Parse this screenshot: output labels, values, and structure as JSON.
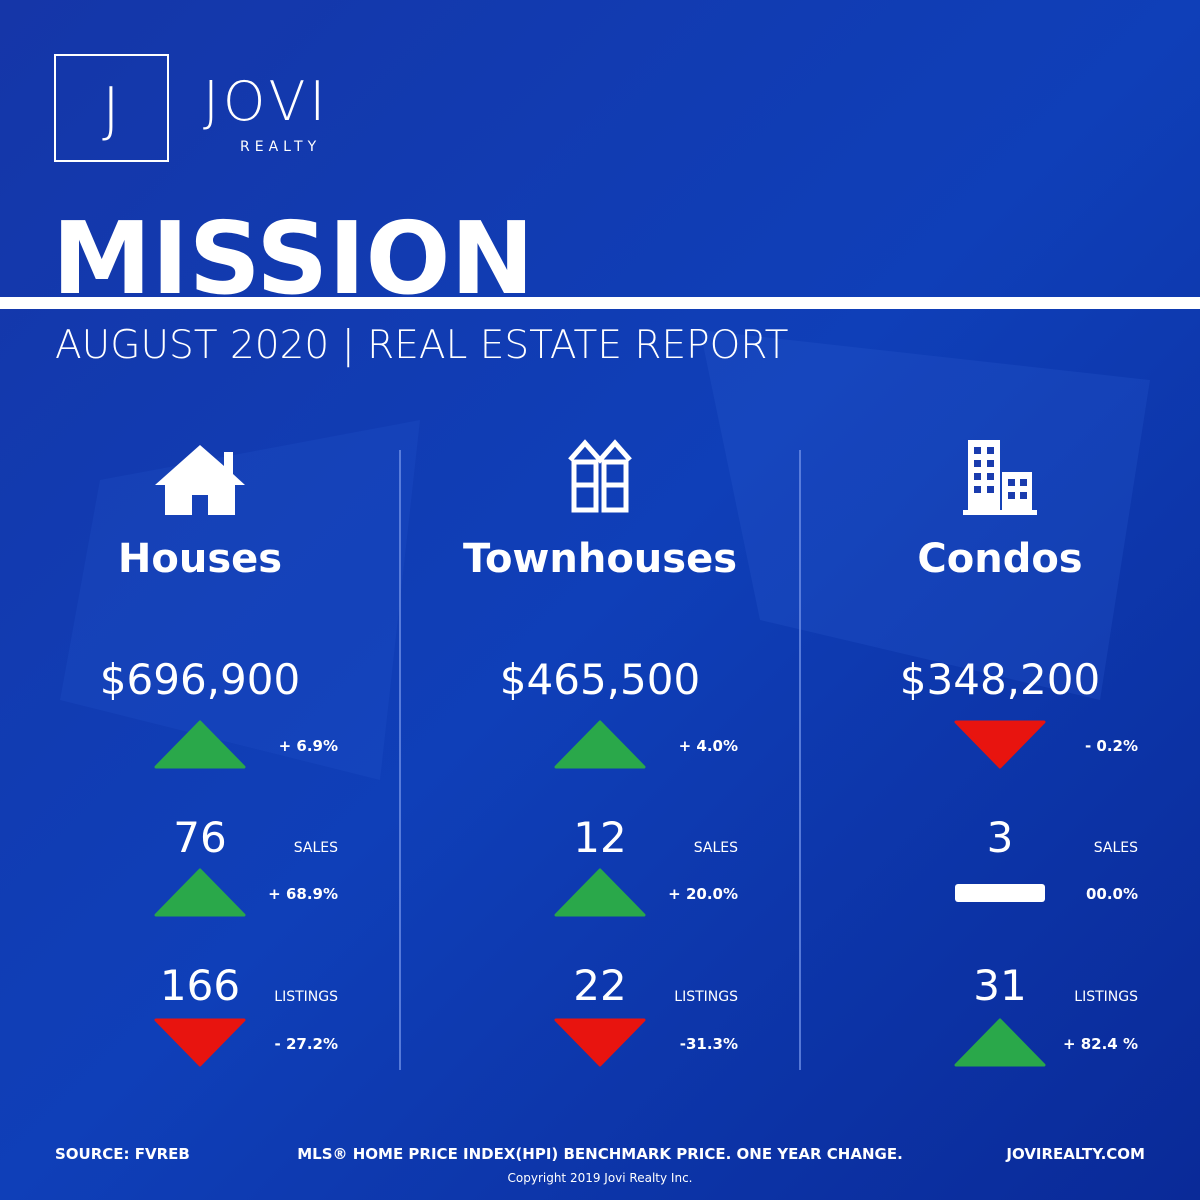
{
  "brand": {
    "logo_letter": "J",
    "name": "JOVI",
    "tagline": "REALTY"
  },
  "title": "MISSION",
  "subtitle": "AUGUST 2020 | REAL ESTATE REPORT",
  "columns": [
    {
      "label": "Houses",
      "price": "$696,900",
      "price_change": "+ 6.9%",
      "price_trend": "up",
      "sales": "76",
      "sales_label": "SALES",
      "sales_change": "+ 68.9%",
      "sales_trend": "up",
      "listings": "166",
      "listings_label": "LISTINGS",
      "listings_change": "- 27.2%",
      "listings_trend": "down"
    },
    {
      "label": "Townhouses",
      "price": "$465,500",
      "price_change": "+ 4.0%",
      "price_trend": "up",
      "sales": "12",
      "sales_label": "SALES",
      "sales_change": "+ 20.0%",
      "sales_trend": "up",
      "listings": "22",
      "listings_label": "LISTINGS",
      "listings_change": "-31.3%",
      "listings_trend": "down"
    },
    {
      "label": "Condos",
      "price": "$348,200",
      "price_change": "- 0.2%",
      "price_trend": "down",
      "sales": "3",
      "sales_label": "SALES",
      "sales_change": "00.0%",
      "sales_trend": "flat",
      "listings": "31",
      "listings_label": "LISTINGS",
      "listings_change": "+ 82.4 %",
      "listings_trend": "up"
    }
  ],
  "footer": {
    "source": "SOURCE:  FVREB",
    "note": "MLS® HOME PRICE INDEX(HPI) BENCHMARK PRICE. ONE YEAR CHANGE.",
    "website": "JOVIREALTY.COM",
    "copyright": "Copyright 2019 Jovi Realty Inc."
  }
}
